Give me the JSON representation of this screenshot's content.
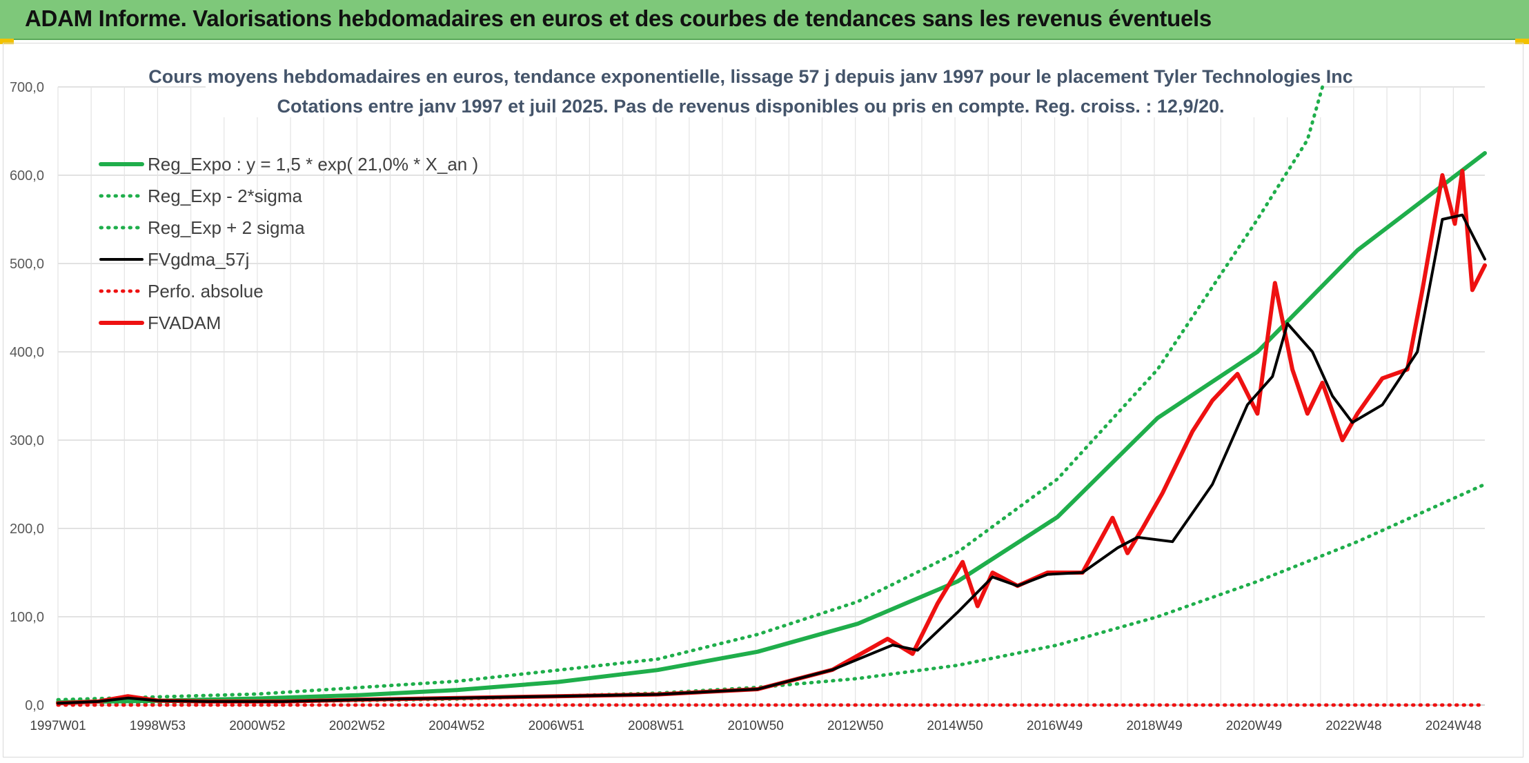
{
  "header": {
    "title": "ADAM Informe. Valorisations hebdomadaires en euros et des courbes de tendances sans les revenus éventuels"
  },
  "colors": {
    "banner": "#7ec87a",
    "trend": "#1fae4b",
    "smooth": "#000000",
    "price": "#ee1111"
  },
  "chart_data": {
    "type": "line",
    "title": "Cours moyens hebdomadaires en euros, tendance exponentielle, lissage 57 j depuis janv 1997 pour le placement Tyler Technologies Inc",
    "subtitle": "Cotations entre janv 1997 et juil 2025. Pas de revenus disponibles ou pris en compte. Reg. croiss. : 12,9/20.",
    "x_ticks": [
      "1997W01",
      "1998W53",
      "2000W52",
      "2002W52",
      "2004W52",
      "2006W51",
      "2008W51",
      "2010W50",
      "2012W50",
      "2014W50",
      "2016W49",
      "2018W49",
      "2020W49",
      "2022W48",
      "2024W48"
    ],
    "y_ticks": [
      "0,0",
      "100,0",
      "200,0",
      "300,0",
      "400,0",
      "500,0",
      "600,0",
      "700,0"
    ],
    "ylim": [
      0,
      700
    ],
    "xlim": [
      1997.0,
      2025.55
    ],
    "grid": true,
    "legend_position": "top-left",
    "series": [
      {
        "name": "Reg_Expo : y = 1,5 * exp( 21,0% *  X_an )",
        "style": "solid-thick",
        "color": "#1fae4b",
        "x": [
          1997,
          1999,
          2001,
          2003,
          2005,
          2007,
          2009,
          2011,
          2013,
          2015,
          2017,
          2019,
          2021,
          2023,
          2025.55
        ],
        "y": [
          3.2,
          4.9,
          7.4,
          11.2,
          17.1,
          26.1,
          39.7,
          60.4,
          92,
          140,
          213,
          325,
          400,
          515,
          625
        ]
      },
      {
        "name": "Reg_Exp - 2*sigma",
        "style": "dotted",
        "color": "#1fae4b",
        "x": [
          1997,
          2001,
          2005,
          2009,
          2011,
          2013,
          2015,
          2017,
          2019,
          2021,
          2023,
          2025.55
        ],
        "y": [
          1.5,
          3.2,
          6.9,
          13.5,
          20,
          30,
          45,
          68,
          100,
          140,
          185,
          250
        ]
      },
      {
        "name": "Reg_Exp + 2 sigma",
        "style": "dotted",
        "color": "#1fae4b",
        "x": [
          1997,
          2001,
          2005,
          2009,
          2011,
          2013,
          2015,
          2017,
          2019,
          2021,
          2022.0,
          2022.3
        ],
        "y": [
          6,
          12.5,
          27,
          52,
          80,
          117,
          173,
          256,
          380,
          550,
          640,
          700
        ]
      },
      {
        "name": "FVgdma_57j",
        "style": "solid",
        "color": "#000000",
        "x": [
          1997,
          1997.8,
          1998.4,
          1999,
          2000,
          2001.5,
          2003,
          2005,
          2007,
          2009,
          2011,
          2012.5,
          2013.7,
          2014.2,
          2015,
          2015.7,
          2016.2,
          2016.8,
          2017.5,
          2018.2,
          2018.6,
          2019.3,
          2020.1,
          2020.8,
          2021.3,
          2021.6,
          2022.1,
          2022.5,
          2022.9,
          2023.5,
          2024.2,
          2024.7,
          2025.1,
          2025.55
        ],
        "y": [
          2,
          4,
          8,
          5,
          4,
          4,
          6,
          8,
          10,
          12,
          18,
          40,
          68,
          62,
          105,
          145,
          135,
          148,
          150,
          178,
          190,
          185,
          250,
          340,
          372,
          432,
          400,
          350,
          320,
          340,
          400,
          550,
          555,
          505
        ]
      },
      {
        "name": "Perfo. absolue",
        "style": "dotted",
        "color": "#ee1111",
        "x": [
          1997,
          2025.55
        ],
        "y": [
          0,
          0
        ]
      },
      {
        "name": "FVADAM",
        "style": "solid-thick",
        "color": "#ee1111",
        "x": [
          1997,
          1997.8,
          1998.4,
          1999,
          2000,
          2001.5,
          2003,
          2005,
          2007,
          2009,
          2011,
          2012.5,
          2013.6,
          2014.1,
          2014.6,
          2015.1,
          2015.4,
          2015.7,
          2016.2,
          2016.8,
          2017.5,
          2018.1,
          2018.4,
          2018.7,
          2019.1,
          2019.7,
          2020.1,
          2020.6,
          2021.0,
          2021.35,
          2021.7,
          2022.0,
          2022.3,
          2022.7,
          2023.0,
          2023.5,
          2024.0,
          2024.3,
          2024.7,
          2024.95,
          2025.1,
          2025.3,
          2025.55
        ],
        "y": [
          2,
          4,
          10,
          5,
          4,
          4,
          6,
          8,
          10,
          12,
          18,
          40,
          75,
          58,
          115,
          162,
          112,
          150,
          135,
          150,
          150,
          212,
          172,
          200,
          240,
          310,
          345,
          375,
          330,
          478,
          380,
          330,
          365,
          300,
          330,
          370,
          380,
          470,
          600,
          545,
          605,
          470,
          498
        ]
      }
    ]
  }
}
